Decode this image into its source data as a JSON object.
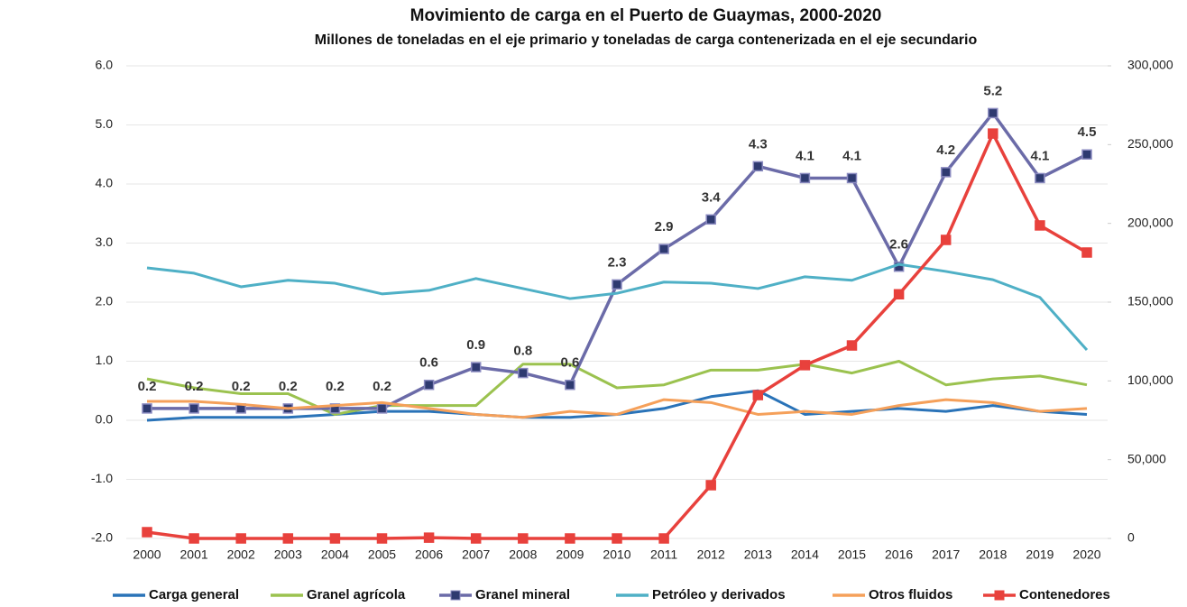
{
  "chart_data": {
    "type": "line",
    "title": "Movimiento de carga en el Puerto de Guaymas, 2000-2020",
    "subtitle": "Millones de toneladas en el eje primario y toneladas de carga contenerizada en el eje secundario",
    "categories": [
      "2000",
      "2001",
      "2002",
      "2003",
      "2004",
      "2005",
      "2006",
      "2007",
      "2008",
      "2009",
      "2010",
      "2011",
      "2012",
      "2013",
      "2014",
      "2015",
      "2016",
      "2017",
      "2018",
      "2019",
      "2020"
    ],
    "ylim": [
      -2,
      6
    ],
    "yticks": [
      {
        "value": -2,
        "label": "-2.0"
      },
      {
        "value": -1,
        "label": "-1.0"
      },
      {
        "value": 0,
        "label": "0.0"
      },
      {
        "value": 1,
        "label": "1.0"
      },
      {
        "value": 2,
        "label": "2.0"
      },
      {
        "value": 3,
        "label": "3.0"
      },
      {
        "value": 4,
        "label": "4.0"
      },
      {
        "value": 5,
        "label": "5.0"
      },
      {
        "value": 6,
        "label": "6.0"
      }
    ],
    "y2lim": [
      0,
      300000
    ],
    "y2ticks": [
      0,
      {
        "value": 50000,
        "label": "50,000"
      },
      {
        "value": 100000,
        "label": "100,000"
      },
      {
        "value": 150000,
        "label": "150,000"
      },
      {
        "value": 200000,
        "label": "200,000"
      },
      {
        "value": 250000,
        "label": "250,000"
      },
      {
        "value": 300000,
        "label": "300,000"
      }
    ],
    "grid": true,
    "legend": "bottom",
    "series": [
      {
        "name": "Carga general",
        "color": "#2a73b8",
        "values": [
          0.0,
          0.05,
          0.05,
          0.05,
          0.1,
          0.15,
          0.15,
          0.1,
          0.05,
          0.05,
          0.1,
          0.2,
          0.4,
          0.5,
          0.1,
          0.15,
          0.2,
          0.15,
          0.25,
          0.15,
          0.1
        ]
      },
      {
        "name": "Granel agrícola",
        "color": "#9bc24f",
        "values": [
          0.7,
          0.55,
          0.45,
          0.45,
          0.1,
          0.25,
          0.25,
          0.25,
          0.95,
          0.95,
          0.55,
          0.6,
          0.85,
          0.85,
          0.95,
          0.8,
          1.0,
          0.6,
          0.7,
          0.75,
          0.6
        ]
      },
      {
        "name": "Granel mineral",
        "color": "#6b6ba8",
        "marker": "square",
        "data_labels": true,
        "values": [
          0.2,
          0.2,
          0.2,
          0.2,
          0.2,
          0.2,
          0.6,
          0.9,
          0.8,
          0.6,
          2.3,
          2.9,
          3.4,
          4.3,
          4.1,
          4.1,
          2.6,
          4.2,
          5.2,
          4.1,
          4.5
        ]
      },
      {
        "name": "Petróleo y derivados",
        "color": "#4fb0c6",
        "values": [
          2.58,
          2.49,
          2.26,
          2.37,
          2.32,
          2.14,
          2.2,
          2.4,
          2.23,
          2.06,
          2.15,
          2.34,
          2.32,
          2.23,
          2.43,
          2.37,
          2.64,
          2.52,
          2.38,
          2.08,
          1.19
        ]
      },
      {
        "name": "Otros fluidos",
        "color": "#f5a05a",
        "values": [
          0.32,
          0.32,
          0.27,
          0.2,
          0.25,
          0.3,
          0.2,
          0.1,
          0.05,
          0.15,
          0.1,
          0.35,
          0.3,
          0.1,
          0.15,
          0.1,
          0.25,
          0.35,
          0.3,
          0.15,
          0.2
        ]
      },
      {
        "name": "Contenedores",
        "color": "#e8413c",
        "marker": "square",
        "axis": "y2",
        "values": [
          4000,
          0,
          0,
          0,
          0,
          0,
          500,
          0,
          0,
          0,
          0,
          0,
          33800,
          91000,
          110000,
          122500,
          155000,
          189500,
          257000,
          198700,
          181500
        ]
      }
    ]
  }
}
